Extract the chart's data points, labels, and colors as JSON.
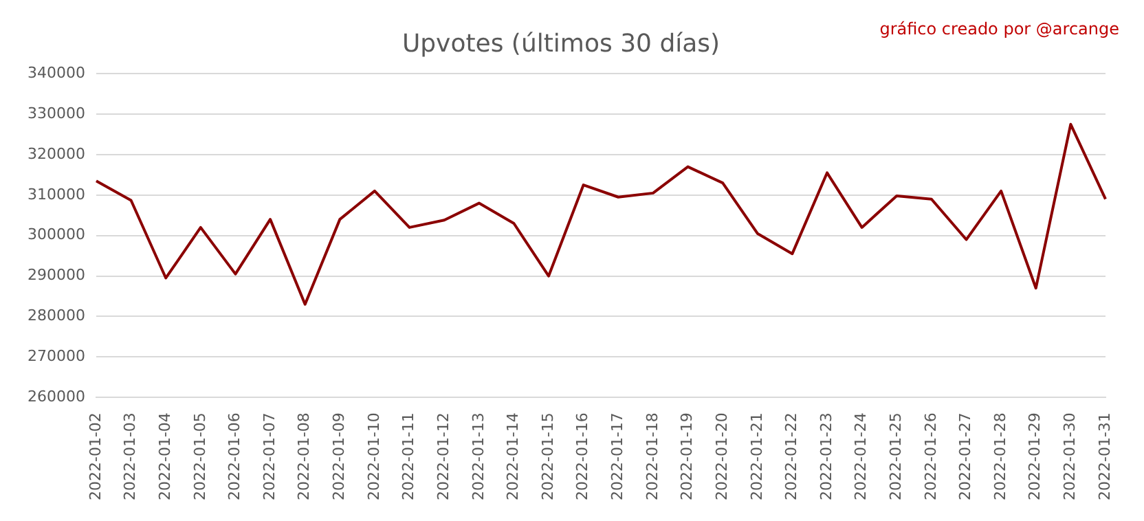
{
  "chart_data": {
    "type": "line",
    "title": "Upvotes (últimos 30 días)",
    "annotations": [
      "gráfico creado por @arcange"
    ],
    "categories": [
      "2022-01-02",
      "2022-01-03",
      "2022-01-04",
      "2022-01-05",
      "2022-01-06",
      "2022-01-07",
      "2022-01-08",
      "2022-01-09",
      "2022-01-10",
      "2022-01-11",
      "2022-01-12",
      "2022-01-13",
      "2022-01-14",
      "2022-01-15",
      "2022-01-16",
      "2022-01-17",
      "2022-01-18",
      "2022-01-19",
      "2022-01-20",
      "2022-01-21",
      "2022-01-22",
      "2022-01-23",
      "2022-01-24",
      "2022-01-25",
      "2022-01-26",
      "2022-01-27",
      "2022-01-28",
      "2022-01-29",
      "2022-01-30",
      "2022-01-31"
    ],
    "series": [
      {
        "color": "#8b0000",
        "values": [
          313500,
          308700,
          289500,
          302000,
          290500,
          304000,
          283000,
          304000,
          311000,
          302000,
          303800,
          308000,
          303000,
          290000,
          312500,
          309500,
          310500,
          317000,
          313000,
          300500,
          295500,
          315500,
          302000,
          309800,
          309000,
          299000,
          311000,
          287000,
          327500,
          309000
        ]
      }
    ],
    "ylim": [
      260000,
      340000
    ],
    "yticks": [
      260000,
      270000,
      280000,
      290000,
      300000,
      310000,
      320000,
      330000,
      340000
    ],
    "grid": "y",
    "legend": false,
    "marker": "none",
    "line_style": "solid"
  }
}
